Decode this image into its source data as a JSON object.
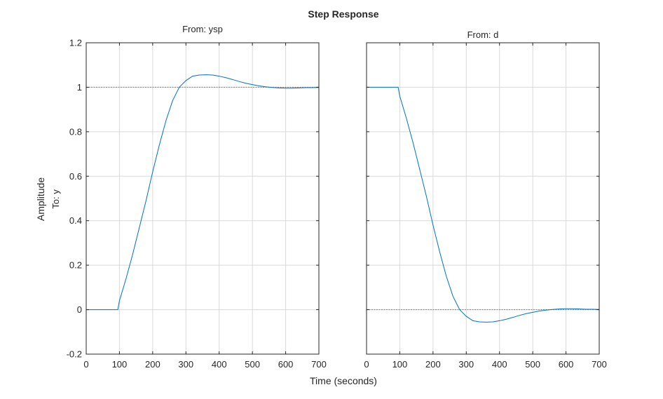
{
  "colors": {
    "line": "#0072BD",
    "grid": "#d9d9d9",
    "ref": "#7f7f7f",
    "axis": "#262626"
  },
  "chart_data": {
    "type": "line",
    "title": "Step Response",
    "xlabel": "Time (seconds)",
    "ylabel": "Amplitude",
    "row_label": "To: y",
    "grid": true,
    "xlim": [
      0,
      700
    ],
    "ylim": [
      -0.2,
      1.2
    ],
    "x_ticks": [
      "0",
      "100",
      "200",
      "300",
      "400",
      "500",
      "600",
      "700"
    ],
    "y_ticks": [
      "-0.2",
      "0",
      "0.2",
      "0.4",
      "0.6",
      "0.8",
      "1",
      "1.2"
    ],
    "panels": [
      {
        "subtitle": "From: ysp",
        "reference": 1,
        "series": [
          {
            "x": [
              0,
              95,
              100,
              120,
              140,
              160,
              180,
              200,
              220,
              240,
              260,
              280,
              300,
              320,
              340,
              360,
              380,
              400,
              420,
              440,
              460,
              480,
              500,
              520,
              540,
              560,
              580,
              600,
              620,
              640,
              660,
              680,
              700
            ],
            "values": [
              0,
              0,
              0.04,
              0.14,
              0.25,
              0.37,
              0.49,
              0.62,
              0.74,
              0.85,
              0.94,
              1.0,
              1.03,
              1.05,
              1.055,
              1.056,
              1.055,
              1.05,
              1.043,
              1.035,
              1.026,
              1.018,
              1.012,
              1.006,
              1.002,
              0.999,
              0.997,
              0.996,
              0.996,
              0.997,
              0.998,
              0.998,
              0.999
            ]
          }
        ]
      },
      {
        "subtitle": "From: d",
        "reference": 0,
        "series": [
          {
            "x": [
              0,
              95,
              100,
              120,
              140,
              160,
              180,
              200,
              220,
              240,
              260,
              280,
              300,
              320,
              340,
              360,
              380,
              400,
              420,
              440,
              460,
              480,
              500,
              520,
              540,
              560,
              580,
              600,
              620,
              640,
              660,
              680,
              700
            ],
            "values": [
              1,
              1,
              0.96,
              0.86,
              0.75,
              0.63,
              0.51,
              0.38,
              0.26,
              0.15,
              0.06,
              0.0,
              -0.03,
              -0.05,
              -0.055,
              -0.056,
              -0.055,
              -0.05,
              -0.043,
              -0.035,
              -0.026,
              -0.018,
              -0.012,
              -0.006,
              -0.002,
              0.001,
              0.003,
              0.004,
              0.004,
              0.003,
              0.002,
              0.002,
              0.001
            ]
          }
        ]
      }
    ]
  }
}
